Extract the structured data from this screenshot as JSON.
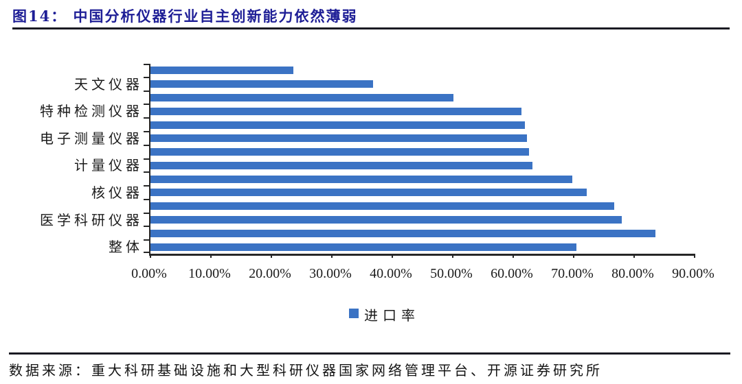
{
  "header": {
    "title": "图14： 中国分析仪器行业自主创新能力依然薄弱"
  },
  "footer": {
    "source": "数据来源：重大科研基础设施和大型科研仪器国家网络管理平台、开源证券研究所"
  },
  "colors": {
    "bar": "#3B73C4",
    "title": "#1E1E96",
    "rule": "#1A1A22",
    "axis": "#262626",
    "text": "#1B1B1B"
  },
  "chart_data": {
    "type": "bar",
    "orientation": "horizontal",
    "legend_label": "进口率",
    "legend_position": "bottom-center",
    "grid": false,
    "x_axis": {
      "min": 0,
      "max": 90,
      "tick_interval": 10,
      "tick_labels": [
        "0.00%",
        "10.00%",
        "20.00%",
        "30.00%",
        "40.00%",
        "50.00%",
        "60.00%",
        "70.00%",
        "80.00%",
        "90.00%"
      ]
    },
    "y_axis_note": "only alternate category labels are displayed; unlabeled bars shown with empty label",
    "bars": [
      {
        "label": "",
        "value": 23.6
      },
      {
        "label": "天文仪器",
        "value": 36.8
      },
      {
        "label": "",
        "value": 50.1
      },
      {
        "label": "特种检测仪器",
        "value": 61.4
      },
      {
        "label": "",
        "value": 61.9
      },
      {
        "label": "电子测量仪器",
        "value": 62.3
      },
      {
        "label": "",
        "value": 62.6
      },
      {
        "label": "计量仪器",
        "value": 63.2
      },
      {
        "label": "",
        "value": 69.8
      },
      {
        "label": "核仪器",
        "value": 72.2
      },
      {
        "label": "",
        "value": 76.7
      },
      {
        "label": "医学科研仪器",
        "value": 78.0
      },
      {
        "label": "",
        "value": 83.5
      },
      {
        "label": "整体",
        "value": 70.5
      }
    ]
  }
}
